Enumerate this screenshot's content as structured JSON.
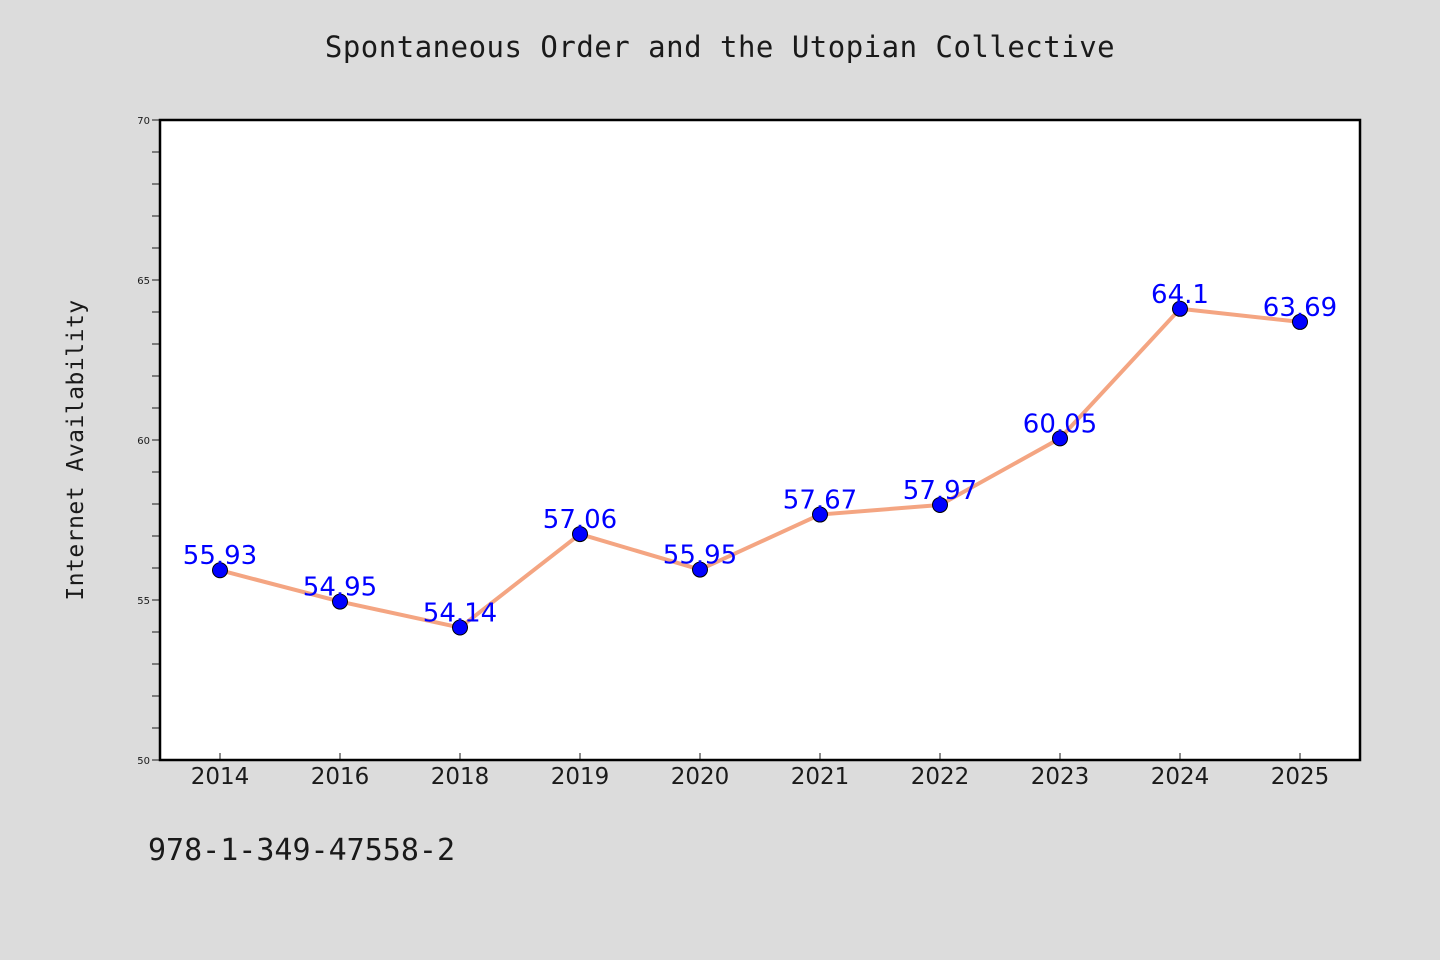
{
  "chart_data": {
    "type": "line",
    "title": "Spontaneous Order and the Utopian Collective",
    "xlabel": "",
    "ylabel": "Internet Availability",
    "categories": [
      "2014",
      "2016",
      "2018",
      "2019",
      "2020",
      "2021",
      "2022",
      "2023",
      "2024",
      "2025"
    ],
    "series": [
      {
        "values": [
          55.93,
          54.95,
          54.14,
          57.06,
          55.95,
          57.67,
          57.97,
          60.05,
          64.1,
          63.69
        ],
        "labels": [
          "55.93",
          "54.95",
          "54.14",
          "57.06",
          "55.95",
          "57.67",
          "57.97",
          "60.05",
          "64.1",
          "63.69"
        ],
        "line_color": "#f4a582",
        "marker_color": "#0000ff"
      }
    ],
    "ylim": [
      50,
      70
    ],
    "yticks": [
      50,
      55,
      60,
      65,
      70
    ],
    "grid": false,
    "legend": "none"
  },
  "footer": {
    "isbn": "978-1-349-47558-2"
  }
}
